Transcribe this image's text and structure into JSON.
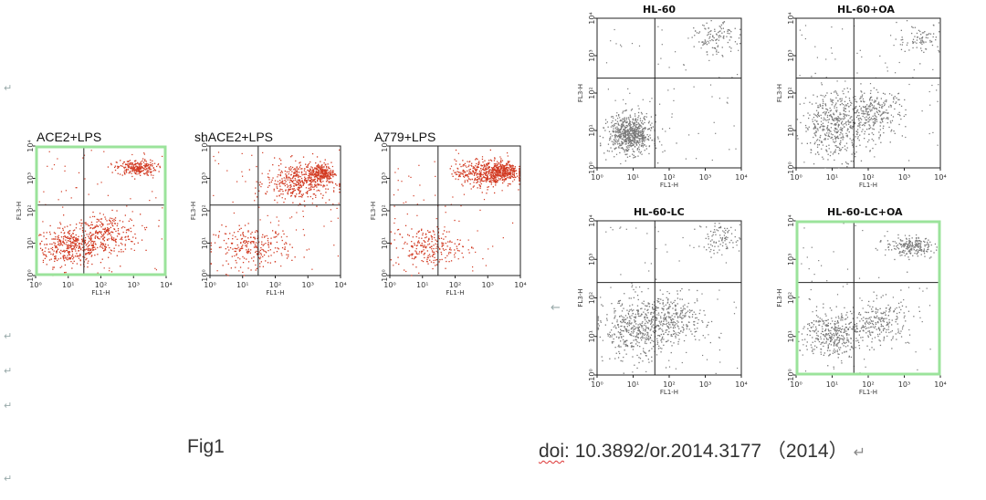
{
  "colors": {
    "left_dots": "#d23a22",
    "right_dots": "#7a7a7a",
    "highlight": "#9be39b",
    "axis": "#222222"
  },
  "captions": {
    "left": "Fig1",
    "doi_label": "doi",
    "doi_rest": ": 10.3892/or.2014.3177 （2014）",
    "return_mark": "↵"
  },
  "side_marks": {
    "arrow_left": "←",
    "return_glyph": "↵"
  },
  "chart_data": [
    {
      "type": "scatter",
      "title": "ACE2+LPS",
      "xlabel": "FL1-H",
      "ylabel": "FL3-H",
      "xscale": "log",
      "yscale": "log",
      "xlim": [
        1,
        10000
      ],
      "ylim": [
        1,
        10000
      ],
      "x_ticks": [
        "10⁰",
        "10¹",
        "10²",
        "10³",
        "10⁴"
      ],
      "y_ticks": [
        "10⁰",
        "10¹",
        "10²",
        "10³",
        "10⁴"
      ],
      "quadrant_lines": {
        "x": 30,
        "y": 150
      },
      "highlighted": true,
      "clusters": [
        {
          "x": 12,
          "y": 8,
          "spread_x": 0.55,
          "spread_y": 0.3,
          "weight": 5
        },
        {
          "x": 150,
          "y": 20,
          "spread_x": 0.5,
          "spread_y": 0.3,
          "weight": 3
        },
        {
          "x": 1200,
          "y": 2200,
          "spread_x": 0.3,
          "spread_y": 0.12,
          "weight": 3
        }
      ]
    },
    {
      "type": "scatter",
      "title": "shACE2+LPS",
      "xlabel": "FL1-H",
      "ylabel": "FL3-H",
      "xscale": "log",
      "yscale": "log",
      "xlim": [
        1,
        10000
      ],
      "ylim": [
        1,
        10000
      ],
      "x_ticks": [
        "10⁰",
        "10¹",
        "10²",
        "10³",
        "10⁴"
      ],
      "y_ticks": [
        "10⁰",
        "10¹",
        "10²",
        "10³",
        "10⁴"
      ],
      "quadrant_lines": {
        "x": 30,
        "y": 150
      },
      "highlighted": false,
      "clusters": [
        {
          "x": 20,
          "y": 8,
          "spread_x": 0.6,
          "spread_y": 0.3,
          "weight": 3
        },
        {
          "x": 500,
          "y": 800,
          "spread_x": 0.5,
          "spread_y": 0.3,
          "weight": 5
        },
        {
          "x": 2500,
          "y": 1500,
          "spread_x": 0.2,
          "spread_y": 0.15,
          "weight": 3
        }
      ]
    },
    {
      "type": "scatter",
      "title": "A779+LPS",
      "xlabel": "FL1-H",
      "ylabel": "FL3-H",
      "xscale": "log",
      "yscale": "log",
      "xlim": [
        1,
        10000
      ],
      "ylim": [
        1,
        10000
      ],
      "x_ticks": [
        "10⁰",
        "10¹",
        "10²",
        "10³",
        "10⁴"
      ],
      "y_ticks": [
        "10⁰",
        "10¹",
        "10²",
        "10³",
        "10⁴"
      ],
      "quadrant_lines": {
        "x": 30,
        "y": 150
      },
      "highlighted": false,
      "clusters": [
        {
          "x": 15,
          "y": 8,
          "spread_x": 0.5,
          "spread_y": 0.3,
          "weight": 3
        },
        {
          "x": 800,
          "y": 1500,
          "spread_x": 0.45,
          "spread_y": 0.2,
          "weight": 6
        },
        {
          "x": 3000,
          "y": 1800,
          "spread_x": 0.2,
          "spread_y": 0.15,
          "weight": 3
        }
      ]
    },
    {
      "type": "scatter",
      "title": "HL-60",
      "xlabel": "FL1-H",
      "ylabel": "FL3-H",
      "xscale": "log",
      "yscale": "log",
      "xlim": [
        1,
        10000
      ],
      "ylim": [
        1,
        10000
      ],
      "x_ticks": [
        "10⁰",
        "10¹",
        "10²",
        "10³",
        "10⁴"
      ],
      "y_ticks": [
        "10⁰",
        "10¹",
        "10²",
        "10³",
        "10⁴"
      ],
      "quadrant_lines": {
        "x": 40,
        "y": 250
      },
      "highlighted": false,
      "clusters": [
        {
          "x": 8,
          "y": 8,
          "spread_x": 0.3,
          "spread_y": 0.25,
          "weight": 6
        },
        {
          "x": 2000,
          "y": 3000,
          "spread_x": 0.3,
          "spread_y": 0.2,
          "weight": 1
        }
      ]
    },
    {
      "type": "scatter",
      "title": "HL-60+OA",
      "xlabel": "FL1-H",
      "ylabel": "FL3-H",
      "xscale": "log",
      "yscale": "log",
      "xlim": [
        1,
        10000
      ],
      "ylim": [
        1,
        10000
      ],
      "x_ticks": [
        "10⁰",
        "10¹",
        "10²",
        "10³",
        "10⁴"
      ],
      "y_ticks": [
        "10⁰",
        "10¹",
        "10²",
        "10³",
        "10⁴"
      ],
      "quadrant_lines": {
        "x": 40,
        "y": 250
      },
      "highlighted": false,
      "clusters": [
        {
          "x": 12,
          "y": 15,
          "spread_x": 0.45,
          "spread_y": 0.45,
          "weight": 6
        },
        {
          "x": 150,
          "y": 30,
          "spread_x": 0.4,
          "spread_y": 0.3,
          "weight": 3
        },
        {
          "x": 2500,
          "y": 3000,
          "spread_x": 0.3,
          "spread_y": 0.2,
          "weight": 1
        }
      ]
    },
    {
      "type": "scatter",
      "title": "HL-60-LC",
      "xlabel": "FL1-H",
      "ylabel": "FL3-H",
      "xscale": "log",
      "yscale": "log",
      "xlim": [
        1,
        10000
      ],
      "ylim": [
        1,
        10000
      ],
      "x_ticks": [
        "10⁰",
        "10¹",
        "10²",
        "10³",
        "10⁴"
      ],
      "y_ticks": [
        "10⁰",
        "10¹",
        "10²",
        "10³",
        "10⁴"
      ],
      "quadrant_lines": {
        "x": 40,
        "y": 250
      },
      "highlighted": false,
      "clusters": [
        {
          "x": 12,
          "y": 15,
          "spread_x": 0.45,
          "spread_y": 0.4,
          "weight": 5
        },
        {
          "x": 150,
          "y": 30,
          "spread_x": 0.4,
          "spread_y": 0.3,
          "weight": 3
        },
        {
          "x": 2500,
          "y": 3500,
          "spread_x": 0.3,
          "spread_y": 0.2,
          "weight": 1
        }
      ]
    },
    {
      "type": "scatter",
      "title": "HL-60-LC+OA",
      "xlabel": "FL1-H",
      "ylabel": "FL3-H",
      "xscale": "log",
      "yscale": "log",
      "xlim": [
        1,
        10000
      ],
      "ylim": [
        1,
        10000
      ],
      "x_ticks": [
        "10⁰",
        "10¹",
        "10²",
        "10³",
        "10⁴"
      ],
      "y_ticks": [
        "10⁰",
        "10¹",
        "10²",
        "10³",
        "10⁴"
      ],
      "quadrant_lines": {
        "x": 40,
        "y": 250
      },
      "highlighted": true,
      "clusters": [
        {
          "x": 10,
          "y": 12,
          "spread_x": 0.4,
          "spread_y": 0.3,
          "weight": 5
        },
        {
          "x": 200,
          "y": 25,
          "spread_x": 0.4,
          "spread_y": 0.3,
          "weight": 3
        },
        {
          "x": 1500,
          "y": 2200,
          "spread_x": 0.35,
          "spread_y": 0.12,
          "weight": 3
        }
      ]
    }
  ]
}
